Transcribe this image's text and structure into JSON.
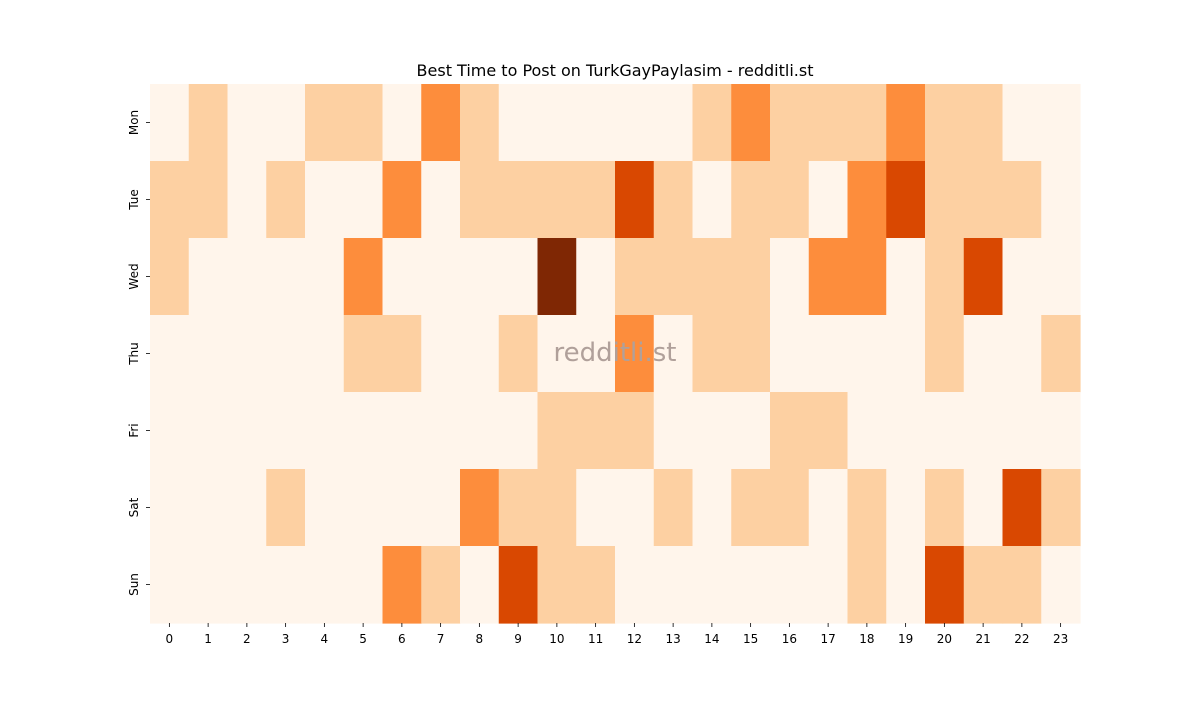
{
  "chart_data": {
    "type": "heatmap",
    "title": "Best Time to Post on TurkGayPaylasim - redditli.st",
    "xlabel": "",
    "ylabel": "",
    "x_categories": [
      "0",
      "1",
      "2",
      "3",
      "4",
      "5",
      "6",
      "7",
      "8",
      "9",
      "10",
      "11",
      "12",
      "13",
      "14",
      "15",
      "16",
      "17",
      "18",
      "19",
      "20",
      "21",
      "22",
      "23"
    ],
    "y_categories": [
      "Mon",
      "Tue",
      "Wed",
      "Thu",
      "Fri",
      "Sat",
      "Sun"
    ],
    "values": [
      [
        0,
        1,
        0,
        0,
        1,
        1,
        0,
        2,
        1,
        0,
        0,
        0,
        0,
        0,
        1,
        2,
        1,
        1,
        1,
        2,
        1,
        1,
        0,
        0
      ],
      [
        1,
        1,
        0,
        1,
        0,
        0,
        2,
        0,
        1,
        1,
        1,
        1,
        3,
        1,
        0,
        1,
        1,
        0,
        2,
        3,
        1,
        1,
        1,
        0
      ],
      [
        1,
        0,
        0,
        0,
        0,
        2,
        0,
        0,
        0,
        0,
        4,
        0,
        1,
        1,
        1,
        1,
        0,
        2,
        2,
        0,
        1,
        3,
        0,
        0
      ],
      [
        0,
        0,
        0,
        0,
        0,
        1,
        1,
        0,
        0,
        1,
        0,
        0,
        2,
        0,
        1,
        1,
        0,
        0,
        0,
        0,
        1,
        0,
        0,
        1
      ],
      [
        0,
        0,
        0,
        0,
        0,
        0,
        0,
        0,
        0,
        0,
        1,
        1,
        1,
        0,
        0,
        0,
        1,
        1,
        0,
        0,
        0,
        0,
        0,
        0
      ],
      [
        0,
        0,
        0,
        1,
        0,
        0,
        0,
        0,
        2,
        1,
        1,
        0,
        0,
        1,
        0,
        1,
        1,
        0,
        1,
        0,
        1,
        0,
        3,
        1
      ],
      [
        0,
        0,
        0,
        0,
        0,
        0,
        2,
        1,
        0,
        3,
        1,
        1,
        0,
        0,
        0,
        0,
        0,
        0,
        1,
        0,
        3,
        1,
        1,
        0
      ]
    ],
    "color_scale": [
      "#fff5eb",
      "#fdd0a2",
      "#fd8d3c",
      "#d94801",
      "#7f2704"
    ],
    "grid": false,
    "legend": "none",
    "watermark": "redditli.st"
  }
}
